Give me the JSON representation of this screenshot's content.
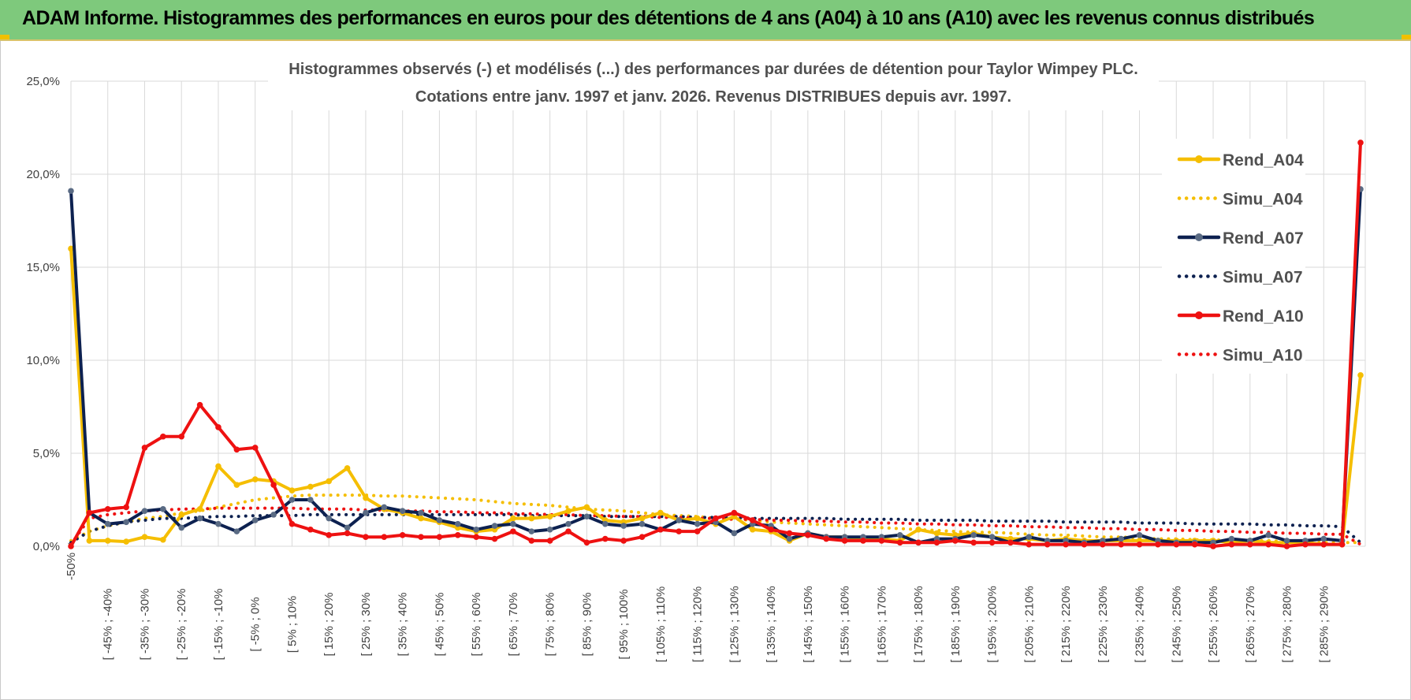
{
  "banner": {
    "title": "ADAM Informe. Histogrammes des performances en euros pour des détentions de 4 ans (A04) à 10 ans (A10) avec les revenus connus distribués"
  },
  "chart_data": {
    "type": "line",
    "title_line1": "Histogrammes observés (-) et modélisés (...) des performances par durées de détention pour Taylor Wimpey PLC.",
    "title_line2": "Cotations entre janv. 1997 et janv. 2026. Revenus DISTRIBUES depuis avr. 1997.",
    "y_ticks": [
      "0,0%",
      "5,0%",
      "10,0%",
      "15,0%",
      "20,0%",
      "25,0%"
    ],
    "ylim": [
      0,
      25
    ],
    "grid": true,
    "legend_position": "top-right",
    "x_tick_labels": [
      "-50% <",
      "[ -45% ; -40%",
      "[ -35% ; -30%",
      "[ -25% ; -20%",
      "[ -15% ; -10%",
      "[ -5% ; 0%",
      "[ 5% ; 10%",
      "[ 15% ; 20%",
      "[ 25% ; 30%",
      "[ 35% ; 40%",
      "[ 45% ; 50%",
      "[ 55% ; 60%",
      "[ 65% ; 70%",
      "[ 75% ; 80%",
      "[ 85% ; 90%",
      "[ 95% ; 100%",
      "[ 105% ; 110%",
      "[ 115% ; 120%",
      "[ 125% ; 130%",
      "[ 135% ; 140%",
      "[ 145% ; 150%",
      "[ 155% ; 160%",
      "[ 165% ; 170%",
      "[ 175% ; 180%",
      "[ 185% ; 190%",
      "[ 195% ; 200%",
      "[ 205% ; 210%",
      "[ 215% ; 220%",
      "[ 225% ; 230%",
      "[ 235% ; 240%",
      "[ 245% ; 250%",
      "[ 255% ; 260%",
      "[ 265% ; 270%",
      "[ 275% ; 280%",
      "[ 285% ; 290%"
    ],
    "series": [
      {
        "name": "Rend_A04",
        "style": "solid",
        "color": "#f5be00",
        "values": [
          16.0,
          0.3,
          0.3,
          0.25,
          0.5,
          0.35,
          1.7,
          2.0,
          4.3,
          3.3,
          3.6,
          3.5,
          3.0,
          3.2,
          3.5,
          4.2,
          2.6,
          2.0,
          1.8,
          1.5,
          1.3,
          1.0,
          0.8,
          0.9,
          1.5,
          1.5,
          1.6,
          1.9,
          2.1,
          1.4,
          1.3,
          1.5,
          1.8,
          1.4,
          1.5,
          1.2,
          1.6,
          0.9,
          0.8,
          0.3,
          0.7,
          0.5,
          0.5,
          0.4,
          0.4,
          0.3,
          0.9,
          0.7,
          0.6,
          0.7,
          0.5,
          0.4,
          0.4,
          0.3,
          0.4,
          0.3,
          0.3,
          0.3,
          0.3,
          0.3,
          0.3,
          0.3,
          0.3,
          0.2,
          0.3,
          0.2,
          0.2,
          0.2,
          0.1,
          0.1,
          9.2
        ]
      },
      {
        "name": "Simu_A04",
        "style": "dotted",
        "color": "#f5be00",
        "values": [
          0.3,
          0.8,
          1.1,
          1.3,
          1.5,
          1.6,
          1.8,
          1.9,
          2.1,
          2.3,
          2.5,
          2.6,
          2.7,
          2.75,
          2.75,
          2.75,
          2.75,
          2.7,
          2.7,
          2.65,
          2.6,
          2.55,
          2.5,
          2.4,
          2.3,
          2.25,
          2.2,
          2.1,
          2.0,
          1.95,
          1.9,
          1.8,
          1.7,
          1.65,
          1.6,
          1.5,
          1.45,
          1.4,
          1.3,
          1.25,
          1.2,
          1.15,
          1.1,
          1.05,
          1.0,
          0.95,
          0.9,
          0.85,
          0.8,
          0.75,
          0.75,
          0.7,
          0.65,
          0.6,
          0.6,
          0.55,
          0.5,
          0.5,
          0.45,
          0.4,
          0.4,
          0.35,
          0.35,
          0.3,
          0.3,
          0.3,
          0.25,
          0.25,
          0.2,
          0.2,
          0.2
        ]
      },
      {
        "name": "Rend_A07",
        "style": "solid",
        "color": "#0d2150",
        "values": [
          19.1,
          1.8,
          1.2,
          1.3,
          1.9,
          2.0,
          1.0,
          1.5,
          1.2,
          0.8,
          1.4,
          1.7,
          2.5,
          2.5,
          1.5,
          1.0,
          1.8,
          2.1,
          1.9,
          1.8,
          1.4,
          1.2,
          0.9,
          1.1,
          1.2,
          0.8,
          0.9,
          1.2,
          1.6,
          1.2,
          1.1,
          1.2,
          0.9,
          1.4,
          1.2,
          1.3,
          0.7,
          1.2,
          1.1,
          0.4,
          0.7,
          0.5,
          0.5,
          0.5,
          0.5,
          0.6,
          0.2,
          0.4,
          0.4,
          0.6,
          0.5,
          0.2,
          0.5,
          0.3,
          0.3,
          0.2,
          0.3,
          0.4,
          0.6,
          0.3,
          0.2,
          0.2,
          0.2,
          0.4,
          0.3,
          0.6,
          0.3,
          0.3,
          0.4,
          0.3,
          19.2
        ]
      },
      {
        "name": "Simu_A07",
        "style": "dotted",
        "color": "#0d2150",
        "values": [
          0.2,
          0.8,
          1.1,
          1.3,
          1.4,
          1.5,
          1.5,
          1.55,
          1.6,
          1.6,
          1.65,
          1.65,
          1.65,
          1.7,
          1.7,
          1.7,
          1.7,
          1.7,
          1.7,
          1.7,
          1.7,
          1.7,
          1.7,
          1.7,
          1.7,
          1.65,
          1.65,
          1.65,
          1.65,
          1.6,
          1.6,
          1.6,
          1.6,
          1.6,
          1.55,
          1.55,
          1.55,
          1.5,
          1.5,
          1.5,
          1.5,
          1.5,
          1.45,
          1.45,
          1.45,
          1.45,
          1.4,
          1.4,
          1.4,
          1.4,
          1.35,
          1.35,
          1.35,
          1.35,
          1.3,
          1.3,
          1.3,
          1.3,
          1.25,
          1.25,
          1.25,
          1.2,
          1.2,
          1.2,
          1.2,
          1.15,
          1.15,
          1.1,
          1.1,
          1.05,
          0.2
        ]
      },
      {
        "name": "Rend_A10",
        "style": "solid",
        "color": "#ee1111",
        "values": [
          0.0,
          1.8,
          2.0,
          2.1,
          5.3,
          5.9,
          5.9,
          7.6,
          6.4,
          5.2,
          5.3,
          3.3,
          1.2,
          0.9,
          0.6,
          0.7,
          0.5,
          0.5,
          0.6,
          0.5,
          0.5,
          0.6,
          0.5,
          0.4,
          0.8,
          0.3,
          0.3,
          0.8,
          0.2,
          0.4,
          0.3,
          0.5,
          0.9,
          0.8,
          0.8,
          1.5,
          1.8,
          1.4,
          0.9,
          0.7,
          0.6,
          0.4,
          0.3,
          0.3,
          0.3,
          0.2,
          0.2,
          0.2,
          0.3,
          0.2,
          0.2,
          0.2,
          0.1,
          0.1,
          0.1,
          0.1,
          0.1,
          0.1,
          0.1,
          0.1,
          0.1,
          0.1,
          0.0,
          0.1,
          0.1,
          0.1,
          0.0,
          0.1,
          0.1,
          0.1,
          21.7
        ]
      },
      {
        "name": "Simu_A10",
        "style": "dotted",
        "color": "#ee1111",
        "values": [
          0.1,
          1.5,
          1.7,
          1.8,
          1.9,
          1.95,
          2.0,
          2.0,
          2.05,
          2.05,
          2.05,
          2.05,
          2.05,
          2.0,
          2.0,
          2.0,
          1.95,
          1.95,
          1.9,
          1.9,
          1.85,
          1.85,
          1.8,
          1.8,
          1.75,
          1.75,
          1.7,
          1.7,
          1.65,
          1.65,
          1.6,
          1.6,
          1.55,
          1.55,
          1.5,
          1.5,
          1.45,
          1.45,
          1.4,
          1.4,
          1.35,
          1.35,
          1.3,
          1.3,
          1.25,
          1.25,
          1.2,
          1.2,
          1.15,
          1.15,
          1.1,
          1.1,
          1.05,
          1.05,
          1.0,
          1.0,
          0.95,
          0.95,
          0.9,
          0.9,
          0.85,
          0.85,
          0.8,
          0.8,
          0.75,
          0.75,
          0.7,
          0.7,
          0.65,
          0.65,
          0.1
        ]
      }
    ]
  }
}
